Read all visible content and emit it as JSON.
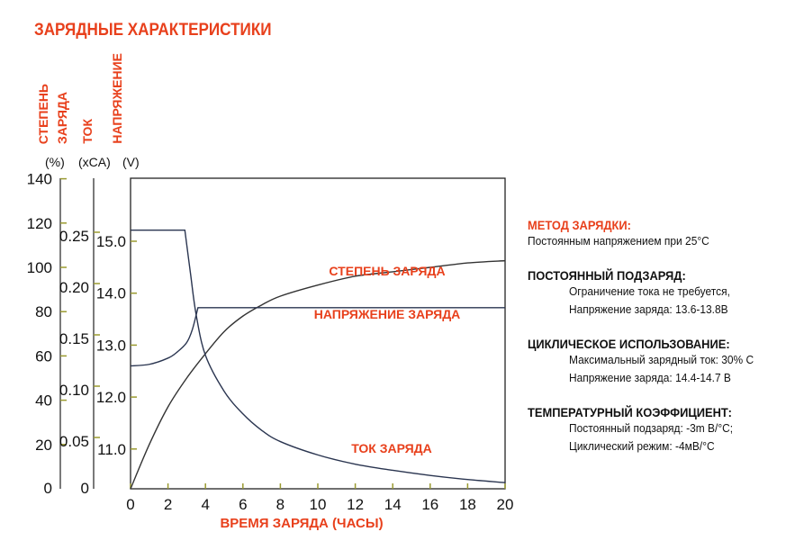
{
  "title": "ЗАРЯДНЫЕ ХАРАКТЕРИСТИКИ",
  "chart_data": {
    "type": "line",
    "title": "ЗАРЯДНЫЕ ХАРАКТЕРИСТИКИ",
    "xlabel": "ВРЕМЯ ЗАРЯДА (ЧАСЫ)",
    "xlim": [
      0,
      20
    ],
    "xticks": [
      "0",
      "2",
      "4",
      "6",
      "8",
      "10",
      "12",
      "14",
      "16",
      "18",
      "20"
    ],
    "axes": [
      {
        "label_lines": [
          "СТЕПЕНЬ",
          "ЗАРЯДА"
        ],
        "unit": "(%)",
        "range": [
          0,
          140
        ],
        "ticks": [
          "0",
          "20",
          "40",
          "60",
          "80",
          "100",
          "120",
          "140"
        ]
      },
      {
        "label_lines": [
          "ТОК"
        ],
        "unit": "(xCA)",
        "range": [
          0,
          0.25
        ],
        "ticks": [
          "0",
          "0.05",
          "0.10",
          "0.15",
          "0.20",
          "0.25"
        ]
      },
      {
        "label_lines": [
          "НАПРЯЖЕНИЕ"
        ],
        "unit": "(V)",
        "range": [
          11.0,
          15.0
        ],
        "ticks": [
          "11.0",
          "12.0",
          "13.0",
          "14.0",
          "15.0"
        ]
      }
    ],
    "series": [
      {
        "name": "СТЕПЕНЬ ЗАРЯДА",
        "axis": 0,
        "x": [
          0,
          1,
          2,
          3,
          4,
          5,
          6,
          7,
          8,
          10,
          12,
          14,
          16,
          18,
          20
        ],
        "y": [
          0,
          20,
          37,
          50,
          61,
          71,
          78,
          83,
          87,
          92,
          96,
          98,
          100,
          102,
          103
        ]
      },
      {
        "name": "НАПРЯЖЕНИЕ ЗАРЯДА",
        "axis": 2,
        "x": [
          0,
          1,
          2,
          2.5,
          3,
          3.3,
          3.6,
          20
        ],
        "y": [
          12.6,
          12.63,
          12.75,
          12.87,
          13.05,
          13.3,
          13.72,
          13.72
        ]
      },
      {
        "name": "ТОК ЗАРЯДА",
        "axis": 1,
        "x": [
          0,
          2.9,
          3.2,
          3.5,
          4,
          5,
          6,
          7,
          8,
          10,
          12,
          14,
          16,
          18,
          20
        ],
        "y": [
          0.252,
          0.252,
          0.21,
          0.17,
          0.13,
          0.095,
          0.073,
          0.057,
          0.046,
          0.033,
          0.024,
          0.018,
          0.013,
          0.009,
          0.006
        ]
      }
    ]
  },
  "info": {
    "method_title": "МЕТОД ЗАРЯДКИ:",
    "method_text": "Постоянным напряжением при 25°С",
    "float_title": "ПОСТОЯННЫЙ ПОДЗАРЯД:",
    "float_lines": [
      "Ограничение тока не требуется,",
      "Напряжение заряда: 13.6-13.8В"
    ],
    "cyclic_title": "ЦИКЛИЧЕСКОЕ ИСПОЛЬЗОВАНИЕ:",
    "cyclic_lines": [
      "Максимальный зарядный ток: 30% С",
      "Напряжение заряда: 14.4-14.7 В"
    ],
    "temp_title": "ТЕМПЕРАТУРНЫЙ КОЭФФИЦИЕНТ:",
    "temp_lines": [
      "Постоянный подзаряд: -3m В/°С;",
      "Циклический режим: -4мВ/°С"
    ]
  },
  "colors": {
    "accent": "#e8401c",
    "line": "#2a3550"
  }
}
